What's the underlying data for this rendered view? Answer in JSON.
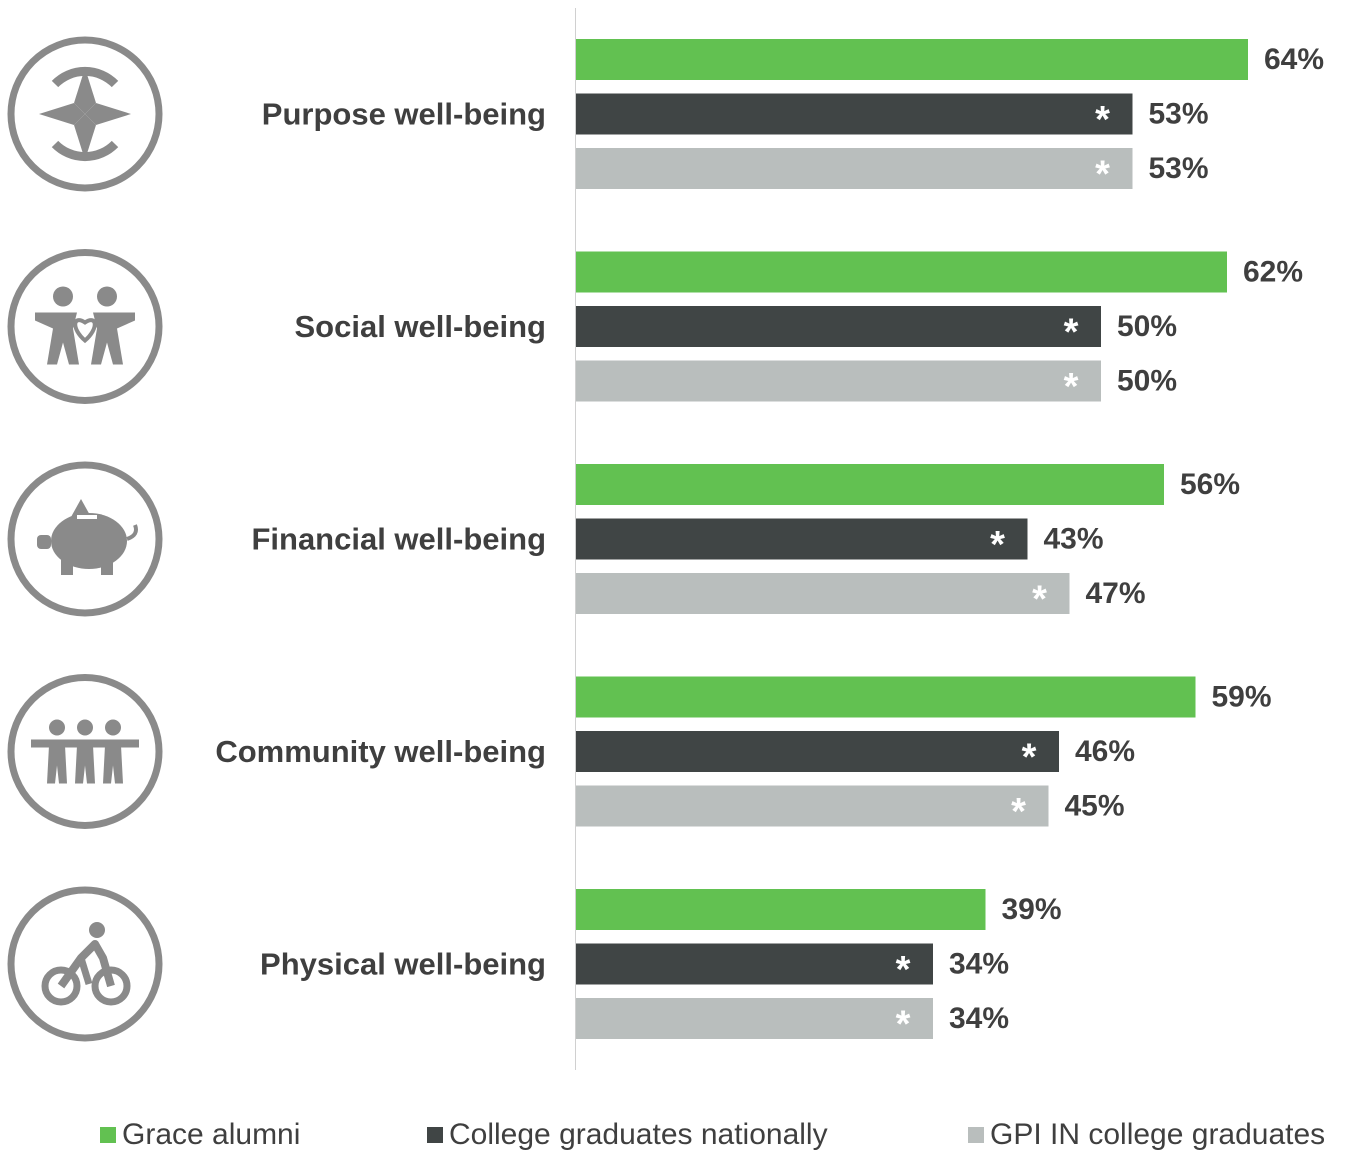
{
  "chart_data": {
    "type": "bar",
    "orientation": "horizontal",
    "categories": [
      "Purpose well-being",
      "Social well-being",
      "Financial well-being",
      "Community well-being",
      "Physical well-being"
    ],
    "category_icons": [
      "compass-icon",
      "two-people-heart-icon",
      "piggy-bank-icon",
      "three-people-icon",
      "cyclist-icon"
    ],
    "series": [
      {
        "name": "Grace alumni",
        "color": "#62c151",
        "values": [
          64,
          62,
          56,
          59,
          39
        ],
        "labels": [
          "64%",
          "62%",
          "56%",
          "59%",
          "39%"
        ],
        "significance": [
          false,
          false,
          false,
          false,
          false
        ]
      },
      {
        "name": "College graduates nationally",
        "color": "#404545",
        "values": [
          53,
          50,
          43,
          46,
          34
        ],
        "labels": [
          "53%",
          "50%",
          "43%",
          "46%",
          "34%"
        ],
        "significance": [
          true,
          true,
          true,
          true,
          true
        ]
      },
      {
        "name": "GPI IN college graduates",
        "color": "#b9bebd",
        "values": [
          53,
          50,
          47,
          45,
          34
        ],
        "labels": [
          "53%",
          "50%",
          "47%",
          "45%",
          "34%"
        ],
        "significance": [
          true,
          true,
          true,
          true,
          true
        ]
      }
    ],
    "significance_marker": "*",
    "unit": "%",
    "xlim": [
      0,
      100
    ],
    "legend_position": "bottom",
    "grid": false
  }
}
